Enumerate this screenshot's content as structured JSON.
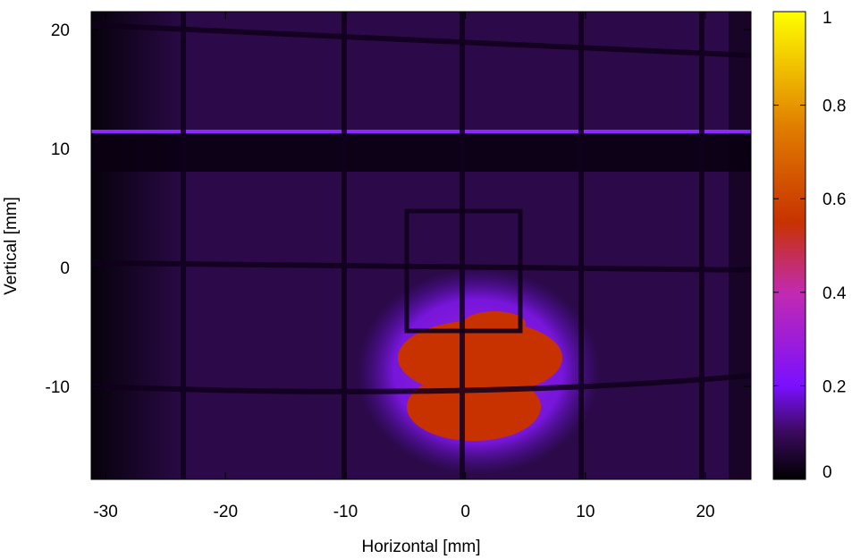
{
  "chart_data": {
    "type": "heatmap",
    "xlabel": "Horizontal [mm]",
    "ylabel": "Vertical [mm]",
    "xlim": [
      -31.2,
      23.8
    ],
    "ylim": [
      -17.8,
      21.5
    ],
    "x_ticks": [
      -30,
      -20,
      -10,
      0,
      10,
      20
    ],
    "y_ticks": [
      -10,
      0,
      10,
      20
    ],
    "colorbar": {
      "range": [
        0,
        1
      ],
      "ticks": [
        0,
        0.2,
        0.4,
        0.6,
        0.8,
        1
      ],
      "tick_labels": [
        "0",
        "0.2",
        "0.4",
        "0.6",
        "0.8",
        "1"
      ],
      "colormap": [
        "#000000",
        "#3a0a5c",
        "#7a10ff",
        "#c22ab0",
        "#c83200",
        "#e07c00",
        "#ffff00"
      ]
    },
    "background_level": 0.08,
    "hot_spot": {
      "center": [
        1.5,
        -8.5
      ],
      "semi_axes": [
        7,
        6.5
      ],
      "peak_level": 0.55
    },
    "bright_line": {
      "y": 11.5,
      "level": 0.22
    },
    "grid_on": false
  }
}
